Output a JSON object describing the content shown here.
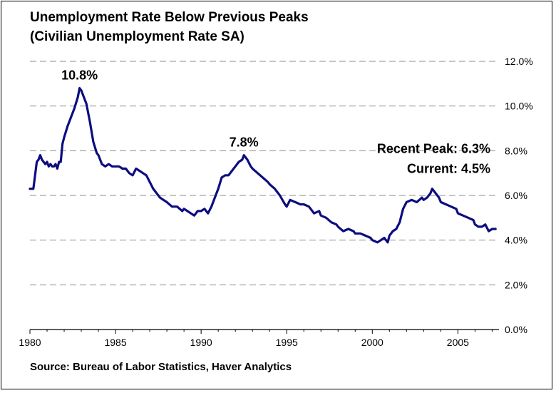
{
  "title_line1": "Unemployment Rate Below Previous Peaks",
  "title_line2": "(Civilian Unemployment Rate SA)",
  "source": "Source: Bureau of Labor Statistics, Haver Analytics",
  "colors": {
    "line": "#0d0d80",
    "grid": "#8c8c8c",
    "text": "#000000"
  },
  "chart_data": {
    "type": "line",
    "title": "Unemployment Rate Below Previous Peaks",
    "subtitle": "(Civilian Unemployment Rate SA)",
    "xlim": [
      1980,
      2007.4
    ],
    "ylim": [
      0,
      12
    ],
    "x_ticks": [
      1980,
      1985,
      1990,
      1995,
      2000,
      2005
    ],
    "x_tick_labels": [
      "1980",
      "1985",
      "1990",
      "1995",
      "2000",
      "2005"
    ],
    "y_ticks": [
      0,
      2,
      4,
      6,
      8,
      10,
      12
    ],
    "y_tick_labels": [
      "0.0%",
      "2.0%",
      "4.0%",
      "6.0%",
      "8.0%",
      "10.0%",
      "12.0%"
    ],
    "y_axis_side": "right",
    "grid": "horizontal dashed",
    "series": [
      {
        "x": [
          1980.0,
          1980.1,
          1980.2,
          1980.3,
          1980.4,
          1980.5,
          1980.6,
          1980.7,
          1980.8,
          1980.9,
          1981.0,
          1981.1,
          1981.2,
          1981.3,
          1981.4,
          1981.5,
          1981.6,
          1981.7,
          1981.8,
          1981.9,
          1982.0,
          1982.2,
          1982.4,
          1982.6,
          1982.8,
          1982.9,
          1983.0,
          1983.2,
          1983.3,
          1983.5,
          1983.7,
          1983.9,
          1984.0,
          1984.2,
          1984.4,
          1984.6,
          1984.8,
          1985.0,
          1985.2,
          1985.4,
          1985.6,
          1985.8,
          1986.0,
          1986.2,
          1986.4,
          1986.6,
          1986.8,
          1987.0,
          1987.2,
          1987.4,
          1987.6,
          1987.8,
          1988.0,
          1988.3,
          1988.6,
          1988.9,
          1989.0,
          1989.2,
          1989.4,
          1989.6,
          1989.8,
          1990.0,
          1990.2,
          1990.4,
          1990.6,
          1990.8,
          1991.0,
          1991.2,
          1991.4,
          1991.6,
          1991.8,
          1992.0,
          1992.2,
          1992.4,
          1992.5,
          1992.7,
          1992.9,
          1993.0,
          1993.3,
          1993.6,
          1993.9,
          1994.0,
          1994.3,
          1994.6,
          1994.9,
          1995.0,
          1995.2,
          1995.5,
          1995.8,
          1996.0,
          1996.3,
          1996.6,
          1996.9,
          1997.0,
          1997.3,
          1997.6,
          1997.9,
          1998.0,
          1998.3,
          1998.6,
          1998.9,
          1999.0,
          1999.3,
          1999.6,
          1999.9,
          2000.0,
          2000.3,
          2000.5,
          2000.7,
          2000.9,
          2001.0,
          2001.2,
          2001.4,
          2001.6,
          2001.8,
          2002.0,
          2002.3,
          2002.6,
          2002.9,
          2003.0,
          2003.2,
          2003.4,
          2003.5,
          2003.7,
          2003.9,
          2004.0,
          2004.3,
          2004.6,
          2004.9,
          2005.0,
          2005.3,
          2005.6,
          2005.9,
          2006.0,
          2006.2,
          2006.4,
          2006.6,
          2006.8,
          2007.0,
          2007.2
        ],
        "y": [
          6.3,
          6.3,
          6.3,
          6.9,
          7.5,
          7.6,
          7.8,
          7.6,
          7.5,
          7.4,
          7.5,
          7.3,
          7.4,
          7.3,
          7.3,
          7.4,
          7.2,
          7.5,
          7.5,
          8.3,
          8.6,
          9.1,
          9.5,
          9.9,
          10.4,
          10.8,
          10.7,
          10.3,
          10.1,
          9.3,
          8.4,
          7.9,
          7.8,
          7.4,
          7.3,
          7.4,
          7.3,
          7.3,
          7.3,
          7.2,
          7.2,
          7.0,
          6.9,
          7.2,
          7.1,
          7.0,
          6.9,
          6.6,
          6.3,
          6.1,
          5.9,
          5.8,
          5.7,
          5.5,
          5.5,
          5.3,
          5.4,
          5.3,
          5.2,
          5.1,
          5.3,
          5.3,
          5.4,
          5.2,
          5.5,
          5.9,
          6.3,
          6.8,
          6.9,
          6.9,
          7.1,
          7.3,
          7.5,
          7.6,
          7.8,
          7.6,
          7.3,
          7.2,
          7.0,
          6.8,
          6.6,
          6.5,
          6.3,
          6.0,
          5.6,
          5.5,
          5.8,
          5.7,
          5.6,
          5.6,
          5.5,
          5.2,
          5.3,
          5.1,
          5.0,
          4.8,
          4.7,
          4.6,
          4.4,
          4.5,
          4.4,
          4.3,
          4.3,
          4.2,
          4.1,
          4.0,
          3.9,
          4.0,
          4.1,
          3.9,
          4.2,
          4.4,
          4.5,
          4.8,
          5.4,
          5.7,
          5.8,
          5.7,
          5.9,
          5.8,
          5.9,
          6.1,
          6.3,
          6.1,
          5.9,
          5.7,
          5.6,
          5.5,
          5.4,
          5.2,
          5.1,
          5.0,
          4.9,
          4.7,
          4.6,
          4.6,
          4.7,
          4.4,
          4.5,
          4.5
        ]
      }
    ],
    "annotations": [
      {
        "text": "10.8%",
        "x": 1982.9,
        "y": 10.8
      },
      {
        "text": "7.8%",
        "x": 1992.5,
        "y": 7.8
      },
      {
        "text": "Recent Peak: 6.3%",
        "x": 2004.3,
        "y": 7.9
      },
      {
        "text": "Current: 4.5%",
        "x": 2004.6,
        "y": 7.0
      }
    ]
  }
}
